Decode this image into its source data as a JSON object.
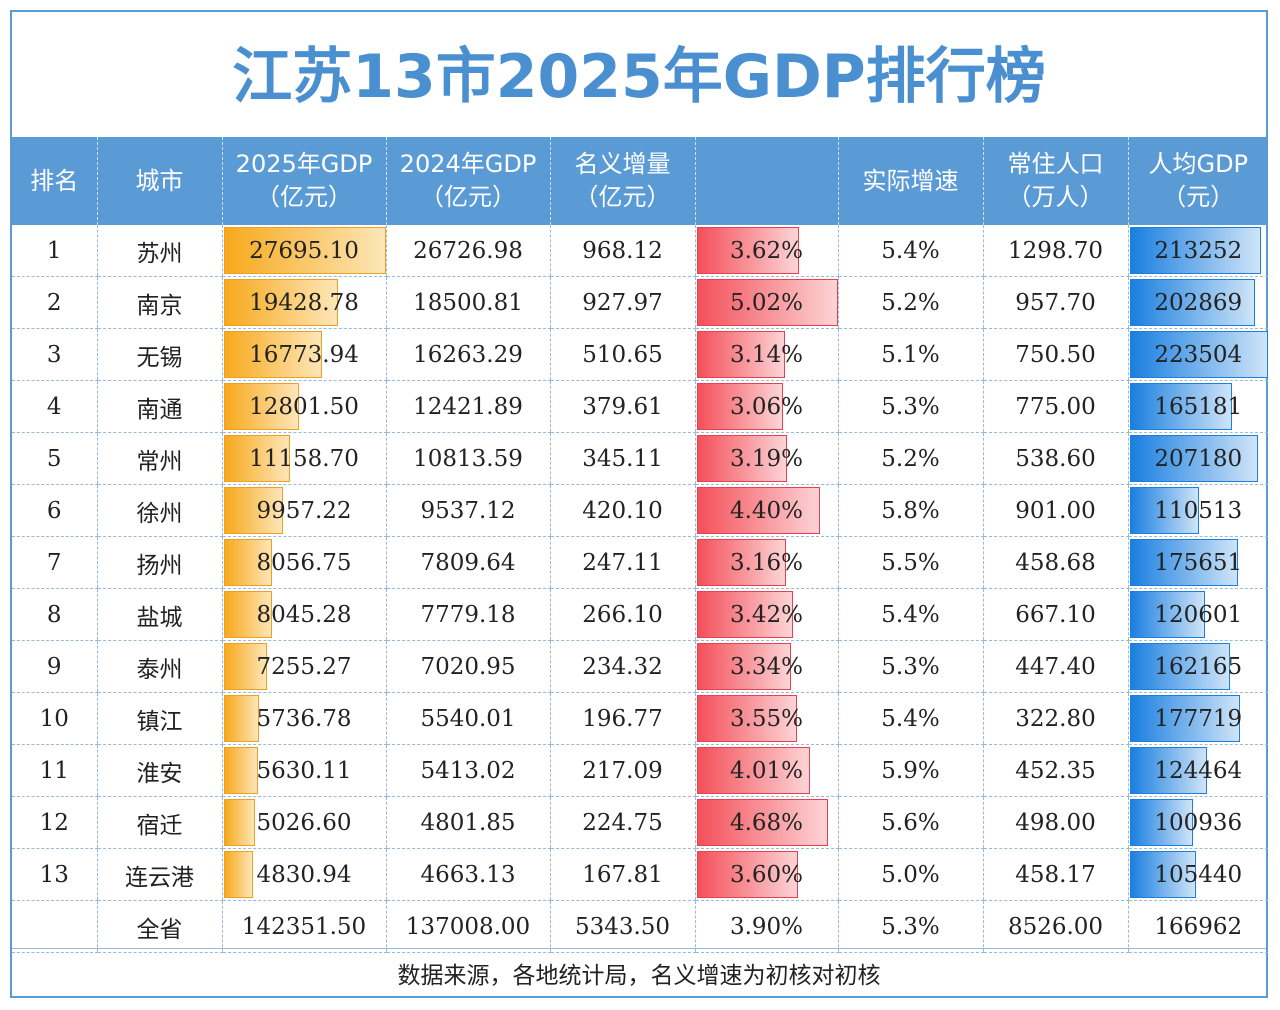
{
  "title": "江苏13市2025年GDP排行榜",
  "footer": "数据来源，各地统计局，名义增速为初核对初核",
  "colors": {
    "header": "#5b9bd5",
    "title": "#4a90d0",
    "gdp_bar": "#f7a91c",
    "growth_bar": "#f4505a",
    "per_capita_bar": "#1a7fe0"
  },
  "chart_data": {
    "type": "table",
    "headers": [
      [
        "排名"
      ],
      [
        "城市"
      ],
      [
        "2025年GDP",
        "（亿元）"
      ],
      [
        "2024年GDP",
        "（亿元）"
      ],
      [
        "名义增量",
        "（亿元）"
      ],
      [
        ""
      ],
      [
        "实际增速"
      ],
      [
        "常住人口",
        "（万人）"
      ],
      [
        "人均GDP",
        "（元）"
      ]
    ],
    "rows": [
      [
        "1",
        "苏州",
        "27695.10",
        "26726.98",
        "968.12",
        "3.62%",
        "5.4%",
        "1298.70",
        "213252"
      ],
      [
        "2",
        "南京",
        "19428.78",
        "18500.81",
        "927.97",
        "5.02%",
        "5.2%",
        "957.70",
        "202869"
      ],
      [
        "3",
        "无锡",
        "16773.94",
        "16263.29",
        "510.65",
        "3.14%",
        "5.1%",
        "750.50",
        "223504"
      ],
      [
        "4",
        "南通",
        "12801.50",
        "12421.89",
        "379.61",
        "3.06%",
        "5.3%",
        "775.00",
        "165181"
      ],
      [
        "5",
        "常州",
        "11158.70",
        "10813.59",
        "345.11",
        "3.19%",
        "5.2%",
        "538.60",
        "207180"
      ],
      [
        "6",
        "徐州",
        "9957.22",
        "9537.12",
        "420.10",
        "4.40%",
        "5.8%",
        "901.00",
        "110513"
      ],
      [
        "7",
        "扬州",
        "8056.75",
        "7809.64",
        "247.11",
        "3.16%",
        "5.5%",
        "458.68",
        "175651"
      ],
      [
        "8",
        "盐城",
        "8045.28",
        "7779.18",
        "266.10",
        "3.42%",
        "5.4%",
        "667.10",
        "120601"
      ],
      [
        "9",
        "泰州",
        "7255.27",
        "7020.95",
        "234.32",
        "3.34%",
        "5.3%",
        "447.40",
        "162165"
      ],
      [
        "10",
        "镇江",
        "5736.78",
        "5540.01",
        "196.77",
        "3.55%",
        "5.4%",
        "322.80",
        "177719"
      ],
      [
        "11",
        "淮安",
        "5630.11",
        "5413.02",
        "217.09",
        "4.01%",
        "5.9%",
        "452.35",
        "124464"
      ],
      [
        "12",
        "宿迁",
        "5026.60",
        "4801.85",
        "224.75",
        "4.68%",
        "5.6%",
        "498.00",
        "100936"
      ],
      [
        "13",
        "连云港",
        "4830.94",
        "4663.13",
        "167.81",
        "3.60%",
        "5.0%",
        "458.17",
        "105440"
      ]
    ],
    "total": [
      "",
      "全省",
      "142351.50",
      "137008.00",
      "5343.50",
      "3.90%",
      "5.3%",
      "8526.00",
      "166962"
    ],
    "data_bars": [
      {
        "column": 2,
        "color": "#f7a91c"
      },
      {
        "column": 5,
        "color": "#f4505a"
      },
      {
        "column": 8,
        "color": "#1a7fe0"
      }
    ]
  }
}
